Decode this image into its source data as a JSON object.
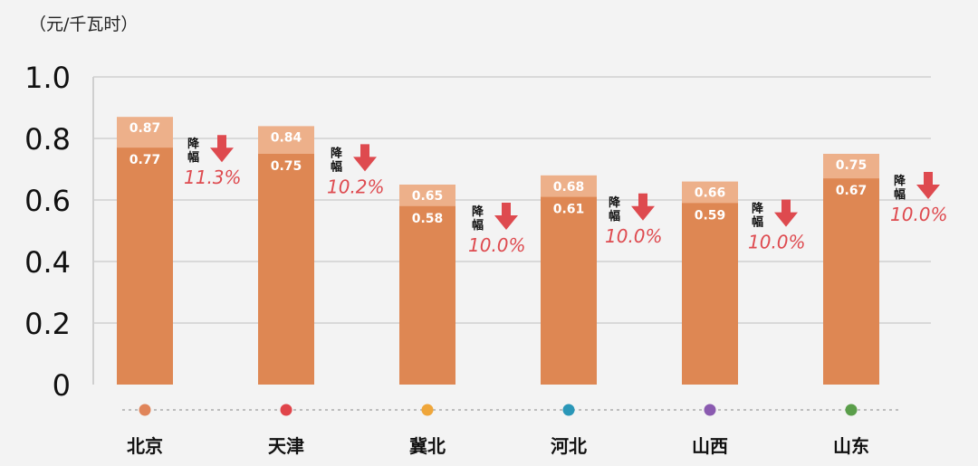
{
  "unit_label": "（元/千瓦时）",
  "decline_label": "降幅",
  "chart_data": {
    "type": "bar",
    "ylim": [
      0,
      1.0
    ],
    "yticks": [
      "0",
      "0.2",
      "0.4",
      "0.6",
      "0.8",
      "1.0"
    ],
    "grid": true,
    "categories": [
      "北京",
      "天津",
      "冀北",
      "河北",
      "山西",
      "山东"
    ],
    "series": [
      {
        "values": [
          0.77,
          0.75,
          0.58,
          0.61,
          0.59,
          0.67
        ]
      },
      {
        "values": [
          0.87,
          0.84,
          0.65,
          0.68,
          0.66,
          0.75
        ]
      }
    ],
    "bar_labels_front": [
      "0.77",
      "0.75",
      "0.58",
      "0.61",
      "0.59",
      "0.67"
    ],
    "bar_labels_back": [
      "0.87",
      "0.84",
      "0.65",
      "0.68",
      "0.66",
      "0.75"
    ],
    "declines": [
      "11.3%",
      "10.2%",
      "10.0%",
      "10.0%",
      "10.0%",
      "10.0%"
    ],
    "dot_colors": [
      "#e0855a",
      "#e0444a",
      "#efa63a",
      "#2a97b8",
      "#8a5ab0",
      "#5a9e4a"
    ],
    "colors": {
      "front": "#de8753",
      "back": "#edb08a",
      "arrow": "#de4a4f",
      "decline_text": "#de4a4f"
    }
  }
}
